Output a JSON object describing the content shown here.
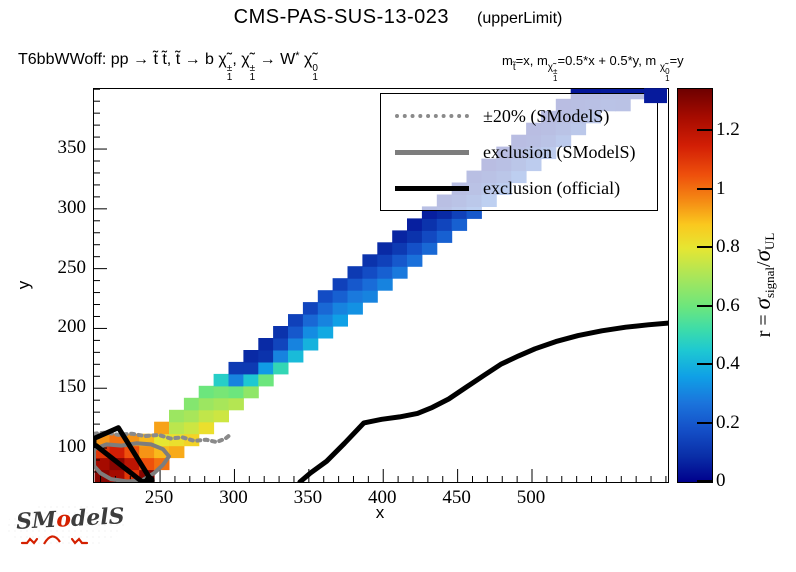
{
  "header": {
    "title": "CMS-PAS-SUS-13-023",
    "subtitle": "(upperLimit)",
    "process": {
      "p1": "T6bbWWoff: pp  ",
      "arrow1": "→",
      "p2": " t̃ t̃,  t̃ ",
      "arrow2": "→",
      "p3": " b ",
      "chi1": "χ̃",
      "chi1_sup": "±",
      "chi1_sub": "1",
      "comma": ", ",
      "chi2": "χ̃",
      "chi2_sup": "±",
      "chi2_sub": "1",
      "arrow3": " → ",
      "w": "W",
      "w_sup": "*",
      "sp": " ",
      "chi3": "χ̃",
      "chi3_sup": "0",
      "chi3_sub": "1"
    },
    "masses": {
      "m1": "m",
      "m1_sub": "t̃",
      "eq1": "=x, m",
      "m2_chi": "χ̃",
      "m2_sup": "±",
      "m2_sub": "1",
      "eq2": "=0.5*x + 0.5*y, m ",
      "m3_chi": "χ̃",
      "m3_sup": "0",
      "m3_sub": "1",
      "eq3": "=y"
    }
  },
  "legend": {
    "entries": [
      {
        "style": "dotted",
        "color": "#8a8a8a",
        "label": "±20% (SModelS)"
      },
      {
        "style": "solid",
        "color": "#7d7d7d",
        "label": "exclusion (SModelS)"
      },
      {
        "style": "solid",
        "color": "#000000",
        "label": "exclusion (official)"
      }
    ]
  },
  "colorbar_title": {
    "r_eq": "r = ",
    "sigma1": "σ",
    "sub1": "signal",
    "slash": "/",
    "sigma2": "σ",
    "sub2": "UL"
  },
  "logo": {
    "l1": "SM",
    "o": "o",
    "l2": "delS"
  },
  "chart_data": {
    "type": "heatmap",
    "title": "CMS-PAS-SUS-13-023 (upperLimit)",
    "xlabel": "x",
    "ylabel": "y",
    "zlabel": "r = sigma_signal / sigma_UL",
    "x_range": [
      205.6,
      591.4
    ],
    "y_range": [
      71.6,
      400.2
    ],
    "z_range": [
      0,
      1.344
    ],
    "x_major_ticks": [
      250,
      300,
      350,
      400,
      450,
      500
    ],
    "x_minor_step": 10,
    "y_major_ticks": [
      100,
      150,
      200,
      250,
      300,
      350
    ],
    "y_minor_step": 10,
    "z_ticks": [
      {
        "v": 0,
        "label": "0"
      },
      {
        "v": 0.2,
        "label": "0.2"
      },
      {
        "v": 0.4,
        "label": "0.4"
      },
      {
        "v": 0.6,
        "label": "0.6"
      },
      {
        "v": 0.8,
        "label": "0.8"
      },
      {
        "v": 1,
        "label": "1"
      },
      {
        "v": 1.2,
        "label": "1.2"
      }
    ],
    "grid": false,
    "legend_position": "top-right",
    "cell_size": [
      10,
      10
    ],
    "colormap": [
      [
        0.0,
        "#00008c"
      ],
      [
        0.09,
        "#0a2fa8"
      ],
      [
        0.18,
        "#1450c8"
      ],
      [
        0.27,
        "#1b74dc"
      ],
      [
        0.36,
        "#0fa0e6"
      ],
      [
        0.45,
        "#1ec8d2"
      ],
      [
        0.52,
        "#3cdcaa"
      ],
      [
        0.6,
        "#6ce67d"
      ],
      [
        0.7,
        "#a8e65a"
      ],
      [
        0.8,
        "#e6e632"
      ],
      [
        0.88,
        "#fac81e"
      ],
      [
        0.96,
        "#f58c14"
      ],
      [
        1.05,
        "#ee500c"
      ],
      [
        1.15,
        "#d21e05"
      ],
      [
        1.25,
        "#a50b00"
      ],
      [
        1.344,
        "#6e0000"
      ]
    ],
    "columns": [
      {
        "x": 206,
        "y0": 72,
        "v": [
          1.3,
          1.25,
          1.1,
          0.95
        ]
      },
      {
        "x": 216,
        "y0": 72,
        "v": [
          1.25,
          1.3,
          1.15,
          1.0
        ]
      },
      {
        "x": 226,
        "y0": 72,
        "v": [
          1.1,
          1.2,
          1.05,
          0.95
        ]
      },
      {
        "x": 236,
        "y0": 72,
        "v": [
          1.3,
          1.05,
          0.95,
          0.9
        ]
      },
      {
        "x": 246,
        "y0": 82,
        "v": [
          1.0,
          0.9,
          0.8,
          0.93
        ]
      },
      {
        "x": 256,
        "y0": 92,
        "v": [
          0.92,
          0.82,
          0.73,
          0.68
        ]
      },
      {
        "x": 266,
        "y0": 102,
        "v": [
          0.85,
          0.76,
          0.7,
          0.64
        ]
      },
      {
        "x": 276,
        "y0": 112,
        "v": [
          0.82,
          0.74,
          0.68,
          0.6
        ]
      },
      {
        "x": 286,
        "y0": 122,
        "v": [
          0.76,
          0.7,
          0.62,
          0.47
        ]
      },
      {
        "x": 296,
        "y0": 132,
        "v": [
          0.72,
          0.6,
          0.3,
          0.12
        ]
      },
      {
        "x": 306,
        "y0": 142,
        "v": [
          0.66,
          0.45,
          0.12,
          0.08
        ]
      },
      {
        "x": 316,
        "y0": 152,
        "v": [
          0.6,
          0.35,
          0.1,
          0.08
        ]
      },
      {
        "x": 326,
        "y0": 162,
        "v": [
          0.5,
          0.3,
          0.15,
          0.1
        ]
      },
      {
        "x": 336,
        "y0": 172,
        "v": [
          0.42,
          0.3,
          0.2,
          0.14
        ]
      },
      {
        "x": 346,
        "y0": 182,
        "v": [
          0.4,
          0.32,
          0.24,
          0.15
        ]
      },
      {
        "x": 356,
        "y0": 192,
        "v": [
          0.38,
          0.3,
          0.24,
          0.17
        ]
      },
      {
        "x": 366,
        "y0": 202,
        "v": [
          0.36,
          0.3,
          0.22,
          0.14
        ]
      },
      {
        "x": 376,
        "y0": 212,
        "v": [
          0.33,
          0.28,
          0.2,
          0.12
        ]
      },
      {
        "x": 386,
        "y0": 222,
        "v": [
          0.3,
          0.25,
          0.17,
          0.1
        ]
      },
      {
        "x": 396,
        "y0": 232,
        "v": [
          0.3,
          0.22,
          0.14,
          0.08
        ]
      },
      {
        "x": 406,
        "y0": 242,
        "v": [
          0.28,
          0.2,
          0.12,
          0.07
        ]
      },
      {
        "x": 416,
        "y0": 252,
        "v": [
          0.26,
          0.18,
          0.1,
          0.06
        ]
      },
      {
        "x": 426,
        "y0": 262,
        "v": [
          0.24,
          0.16,
          0.1,
          0.06
        ]
      },
      {
        "x": 436,
        "y0": 272,
        "v": [
          0.22,
          0.15,
          0.08,
          0.05
        ]
      },
      {
        "x": 446,
        "y0": 282,
        "v": [
          0.22,
          0.14,
          0.08,
          0.05
        ]
      },
      {
        "x": 456,
        "y0": 292,
        "v": [
          0.2,
          0.12,
          0.07,
          0.05
        ]
      },
      {
        "x": 466,
        "y0": 302,
        "v": [
          0.2,
          0.12,
          0.07,
          0.04
        ]
      },
      {
        "x": 476,
        "y0": 312,
        "v": [
          0.18,
          0.1,
          0.06,
          0.04
        ]
      },
      {
        "x": 486,
        "y0": 322,
        "v": [
          0.18,
          0.1,
          0.06,
          0.04
        ]
      },
      {
        "x": 496,
        "y0": 332,
        "v": [
          0.16,
          0.09,
          0.05,
          0.04
        ]
      },
      {
        "x": 506,
        "y0": 342,
        "v": [
          0.15,
          0.08,
          0.05,
          0.04
        ]
      },
      {
        "x": 516,
        "y0": 352,
        "v": [
          0.14,
          0.08,
          0.05,
          0.04
        ]
      },
      {
        "x": 526,
        "y0": 362,
        "v": [
          0.12,
          0.07,
          0.05,
          0.04
        ]
      },
      {
        "x": 536,
        "y0": 372,
        "v": [
          0.1,
          0.06,
          0.04
        ]
      },
      {
        "x": 546,
        "y0": 382,
        "v": [
          0.08,
          0.05
        ]
      },
      {
        "x": 556,
        "y0": 382,
        "v": [
          0.07,
          0.05
        ]
      },
      {
        "x": 566,
        "y0": 392,
        "v": [
          0.05
        ]
      },
      {
        "x": 576,
        "y0": 388,
        "w": 16,
        "h": 12,
        "v": [
          0.05
        ],
        "overlay": true
      }
    ],
    "contours": {
      "official_main": {
        "color": "#000000",
        "width": 5,
        "points": [
          [
            344,
            71.6
          ],
          [
            351,
            79
          ],
          [
            362,
            89
          ],
          [
            374,
            104
          ],
          [
            387,
            121
          ],
          [
            399,
            124
          ],
          [
            411,
            126
          ],
          [
            423,
            129
          ],
          [
            433,
            134
          ],
          [
            444,
            141
          ],
          [
            456,
            151
          ],
          [
            468,
            161
          ],
          [
            479,
            170
          ],
          [
            491,
            177
          ],
          [
            502,
            183
          ],
          [
            516,
            189
          ],
          [
            531,
            194
          ],
          [
            547,
            198
          ],
          [
            563,
            201
          ],
          [
            578,
            203
          ],
          [
            591.4,
            204.5
          ]
        ]
      },
      "official_corner": {
        "color": "#000000",
        "width": 5,
        "closed": true,
        "points": [
          [
            205.6,
            108
          ],
          [
            222,
            117
          ],
          [
            244,
            73
          ],
          [
            238,
            71.8
          ],
          [
            207,
            102
          ],
          [
            205.6,
            102
          ]
        ]
      },
      "smodels_loop": {
        "color": "#7d7d7d",
        "width": 4,
        "closed": true,
        "points": [
          [
            205.6,
            99
          ],
          [
            214,
            103
          ],
          [
            224,
            102
          ],
          [
            234,
            104
          ],
          [
            244,
            103
          ],
          [
            252,
            99
          ],
          [
            256,
            93
          ],
          [
            252,
            86
          ],
          [
            246,
            79
          ],
          [
            238,
            73
          ],
          [
            228,
            72
          ],
          [
            217,
            74
          ],
          [
            210,
            79
          ],
          [
            205.6,
            85
          ]
        ]
      },
      "pm20_dotted": {
        "color": "#8a8a8a",
        "width": 4,
        "dotted": true,
        "points": [
          [
            205.6,
            112
          ],
          [
            214,
            113
          ],
          [
            222,
            111
          ],
          [
            231,
            112
          ],
          [
            240,
            110
          ],
          [
            249,
            111
          ],
          [
            257,
            108
          ],
          [
            265,
            109
          ],
          [
            273,
            106
          ],
          [
            281,
            107
          ],
          [
            288,
            105
          ],
          [
            294,
            108
          ],
          [
            298,
            112
          ]
        ]
      }
    }
  }
}
